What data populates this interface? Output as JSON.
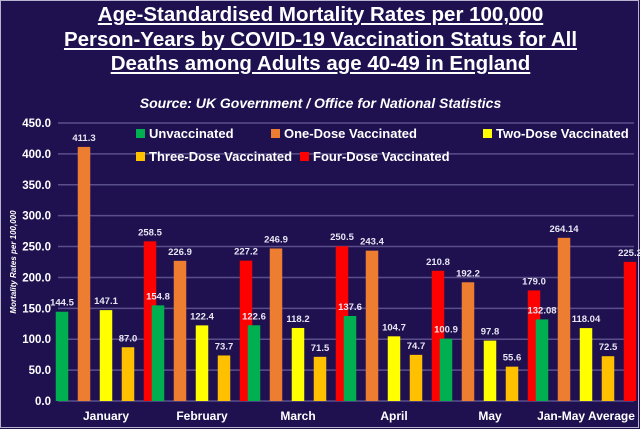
{
  "chart_data": {
    "type": "bar",
    "title_lines": [
      "Age-Standardised Mortality Rates per 100,000",
      "Person-Years by COVID-19 Vaccination Status for All",
      "Deaths among Adults age 40-49 in England"
    ],
    "subtitle": "Source: UK Government / Office for National Statistics",
    "ylabel": "Mortality Rates per 100,000",
    "xlabel": "",
    "ylim": [
      0,
      450
    ],
    "yticks": [
      "0.0",
      "50.0",
      "100.0",
      "150.0",
      "200.0",
      "250.0",
      "300.0",
      "350.0",
      "400.0",
      "450.0"
    ],
    "grid": true,
    "legend_position": "top",
    "categories": [
      "January",
      "February",
      "March",
      "April",
      "May",
      "Jan-May Average"
    ],
    "series": [
      {
        "name": "Unvaccinated",
        "color": "#00b050",
        "values": [
          144.5,
          154.8,
          122.6,
          137.6,
          100.9,
          132.08
        ],
        "labels": [
          "144.5",
          "154.8",
          "122.6",
          "137.6",
          "100.9",
          "132.08"
        ]
      },
      {
        "name": "One-Dose Vaccinated",
        "color": "#ed7d31",
        "values": [
          411.3,
          226.9,
          246.9,
          243.4,
          192.2,
          264.14
        ],
        "labels": [
          "411.3",
          "226.9",
          "246.9",
          "243.4",
          "192.2",
          "264.14"
        ]
      },
      {
        "name": "Two-Dose Vaccinated",
        "color": "#ffff00",
        "values": [
          147.1,
          122.4,
          118.2,
          104.7,
          97.8,
          118.04
        ],
        "labels": [
          "147.1",
          "122.4",
          "118.2",
          "104.7",
          "97.8",
          "118.04"
        ]
      },
      {
        "name": "Three-Dose Vaccinated",
        "color": "#ffc000",
        "values": [
          87.0,
          73.7,
          71.5,
          74.7,
          55.6,
          72.5
        ],
        "labels": [
          "87.0",
          "73.7",
          "71.5",
          "74.7",
          "55.6",
          "72.5"
        ]
      },
      {
        "name": "Four-Dose Vaccinated",
        "color": "#ff0000",
        "values": [
          258.5,
          227.2,
          250.5,
          210.8,
          179.0,
          225.2
        ],
        "labels": [
          "258.5",
          "227.2",
          "250.5",
          "210.8",
          "179.0",
          "225.2"
        ]
      }
    ]
  }
}
